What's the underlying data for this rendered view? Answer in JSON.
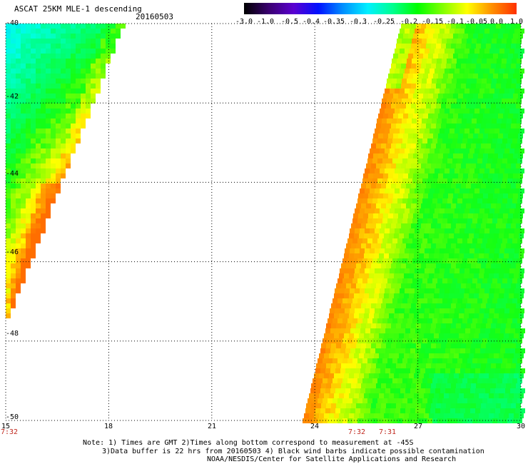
{
  "header": {
    "title": "ASCAT 25KM MLE-1 descending",
    "date": "20160503"
  },
  "colorbar": {
    "labels": [
      "-3.0",
      "-1.0",
      "-0.5",
      "-0.4",
      "-0.35",
      "-0.3",
      "-0.25",
      "-0.2",
      "-0.15",
      "-0.1",
      "-0.05",
      "0.0",
      "1.0"
    ],
    "colors": [
      "#000000",
      "#3a0070",
      "#5a00d0",
      "#0010ff",
      "#0090ff",
      "#00f0ff",
      "#00ff90",
      "#00ff00",
      "#80ff00",
      "#ffff00",
      "#ff9000",
      "#ff3000"
    ]
  },
  "map": {
    "lat_range": [
      -50,
      -40
    ],
    "lon_range": [
      15,
      30
    ],
    "lat_labels": [
      "-40",
      "-42",
      "-44",
      "-46",
      "-48",
      "-50"
    ],
    "lon_labels": [
      "15",
      "18",
      "21",
      "24",
      "27",
      "30"
    ],
    "time_labels": [
      "7:32",
      "7:32",
      "7:31"
    ]
  },
  "notes": {
    "line1": "Note: 1) Times are GMT 2)Times along bottom correspond to measurement at -45S",
    "line2": "3)Data buffer is 22 hrs from 20160503 4) Black wind barbs indicate possible contamination",
    "line3": "NOAA/NESDIS/Center for Satellite Applications and Research"
  }
}
